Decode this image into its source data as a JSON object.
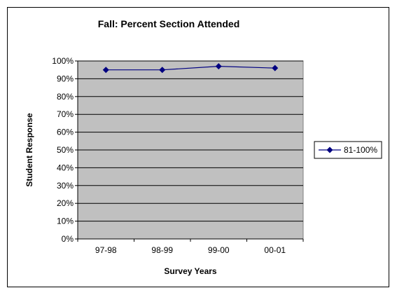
{
  "chart_data": {
    "type": "line",
    "title": "Fall: Percent Section Attended",
    "xlabel": "Survey Years",
    "ylabel": "Student Response",
    "categories": [
      "97-98",
      "98-99",
      "99-00",
      "00-01"
    ],
    "series": [
      {
        "name": "81-100%",
        "values": [
          95,
          95,
          97,
          96
        ]
      }
    ],
    "ylim": [
      0,
      100
    ],
    "yticks": [
      "0%",
      "10%",
      "20%",
      "30%",
      "40%",
      "50%",
      "60%",
      "70%",
      "80%",
      "90%",
      "100%"
    ],
    "grid": true,
    "legend": "right",
    "colors": {
      "plot_background": "#c0c0c0",
      "gridline": "#000000",
      "series_line": "#000080",
      "marker": "#000080"
    }
  }
}
